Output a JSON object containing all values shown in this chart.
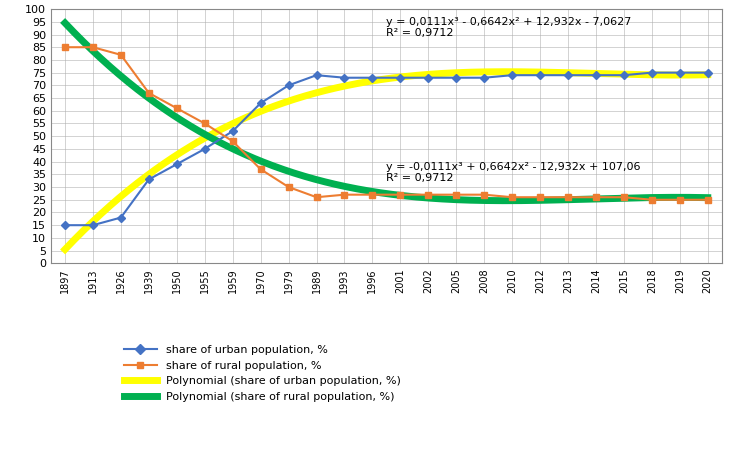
{
  "years": [
    1897,
    1913,
    1926,
    1939,
    1950,
    1955,
    1959,
    1970,
    1979,
    1989,
    1993,
    1996,
    2001,
    2002,
    2005,
    2008,
    2010,
    2012,
    2013,
    2014,
    2015,
    2018,
    2019,
    2020
  ],
  "urban": [
    15,
    15,
    18,
    33,
    39,
    45,
    52,
    63,
    70,
    74,
    73,
    73,
    73,
    73,
    73,
    73,
    74,
    74,
    74,
    74,
    74,
    75,
    75,
    75
  ],
  "rural": [
    85,
    85,
    82,
    67,
    61,
    55,
    48,
    37,
    30,
    26,
    27,
    27,
    27,
    27,
    27,
    27,
    26,
    26,
    26,
    26,
    26,
    25,
    25,
    25
  ],
  "urban_color": "#4472c4",
  "rural_color": "#ed7d31",
  "poly_urban_color": "#ffff00",
  "poly_rural_color": "#00b050",
  "urban_marker": "D",
  "rural_marker": "s",
  "urban_label": "share of urban population, %",
  "rural_label": "share of rural population, %",
  "poly_urban_label": "Polynomial (share of urban population, %)",
  "poly_rural_label": "Polynomial (share of rural population, %)",
  "urban_eq": "y = 0,0111x³ - 0,6642x² + 12,932x - 7,0627",
  "urban_r2": "R² = 0,9712",
  "rural_eq": "y = -0,0111x³ + 0,6642x² - 12,932x + 107,06",
  "rural_r2": "R² = 0,9712",
  "ylim": [
    0,
    100
  ],
  "yticks": [
    0,
    5,
    10,
    15,
    20,
    25,
    30,
    35,
    40,
    45,
    50,
    55,
    60,
    65,
    70,
    75,
    80,
    85,
    90,
    95,
    100
  ],
  "bg_color": "#ffffff",
  "grid_color": "#b0b0b0"
}
